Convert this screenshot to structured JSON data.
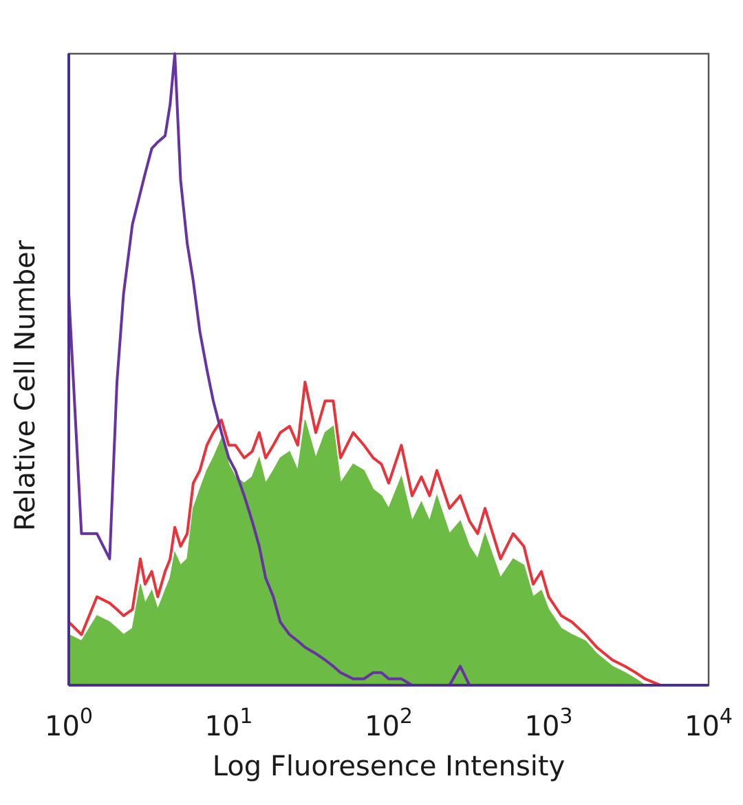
{
  "chart_data": {
    "type": "area",
    "title": "",
    "xlabel": "Log Fluoresence Intensity",
    "ylabel": "Relative Cell Number",
    "x_scale": "log",
    "xlim": [
      1,
      10000
    ],
    "ylim": [
      0,
      100
    ],
    "grid": false,
    "legend": "none",
    "x_ticks": [
      {
        "value": 1,
        "base": "10",
        "exp": "0"
      },
      {
        "value": 10,
        "base": "10",
        "exp": "1"
      },
      {
        "value": 100,
        "base": "10",
        "exp": "2"
      },
      {
        "value": 1000,
        "base": "10",
        "exp": "3"
      },
      {
        "value": 10000,
        "base": "10",
        "exp": "4"
      }
    ],
    "x": [
      1.0,
      1.2,
      1.5,
      1.8,
      2.0,
      2.2,
      2.5,
      2.8,
      3.0,
      3.3,
      3.6,
      4.0,
      4.3,
      4.6,
      5.0,
      5.5,
      6.0,
      6.6,
      7.3,
      8.0,
      9.0,
      10.0,
      11.0,
      12.5,
      14.0,
      15.5,
      17.0,
      19.0,
      21.0,
      24.0,
      27.0,
      30.0,
      35.0,
      40.0,
      45.0,
      50.0,
      60.0,
      70.0,
      80.0,
      90.0,
      100.0,
      120.0,
      140.0,
      160.0,
      180.0,
      200.0,
      240.0,
      280.0,
      320.0,
      360.0,
      400.0,
      500.0,
      600.0,
      700.0,
      800.0,
      900.0,
      1000.0,
      1200.0,
      1400.0,
      1700.0,
      2000.0,
      2500.0,
      3000.0,
      3500.0,
      4000.0,
      5000.0,
      7000.0,
      10000.0
    ],
    "series": [
      {
        "color": "#6633a0",
        "fill": "none",
        "values": [
          62,
          24,
          24,
          20,
          48,
          62,
          73,
          78,
          81,
          85,
          86,
          87,
          92,
          100,
          80,
          70,
          64,
          56,
          50,
          45,
          40,
          36,
          34,
          30,
          26,
          22,
          17,
          14,
          10,
          8,
          7,
          6,
          5,
          4,
          3,
          2,
          1,
          1,
          2,
          2,
          1,
          1,
          0,
          0,
          0,
          0,
          0,
          3,
          0,
          0,
          0,
          0,
          0,
          0,
          0,
          0,
          0,
          0,
          0,
          0,
          0,
          0,
          0,
          0,
          0,
          0,
          0,
          0
        ]
      },
      {
        "color": "#e8333a",
        "fill": "none",
        "values": [
          10,
          8,
          14,
          13,
          12,
          11,
          12,
          20,
          16,
          18,
          14,
          18,
          20,
          25,
          22,
          24,
          32,
          34,
          38,
          40,
          42,
          38,
          38,
          36,
          37,
          40,
          36,
          38,
          40,
          41,
          38,
          48,
          40,
          45,
          45,
          36,
          40,
          38,
          36,
          35,
          32,
          38,
          30,
          33,
          30,
          34,
          28,
          30,
          26,
          24,
          28,
          20,
          24,
          22,
          16,
          18,
          14,
          11,
          10,
          8,
          6,
          4,
          3,
          2,
          1,
          0,
          0,
          0
        ]
      },
      {
        "color": "#6cbb45",
        "fill": "#6cbb45",
        "values": [
          8,
          7,
          11,
          10,
          9,
          8,
          9,
          16,
          13,
          15,
          12,
          15,
          17,
          21,
          19,
          20,
          28,
          31,
          34,
          36,
          39,
          35,
          33,
          32,
          33,
          36,
          32,
          34,
          36,
          37,
          34,
          42,
          36,
          40,
          41,
          32,
          35,
          34,
          31,
          30,
          28,
          33,
          26,
          29,
          26,
          30,
          24,
          26,
          22,
          20,
          24,
          17,
          20,
          19,
          14,
          15,
          12,
          9,
          8,
          7,
          5,
          3,
          2,
          1,
          0,
          0,
          0,
          0
        ]
      }
    ]
  }
}
